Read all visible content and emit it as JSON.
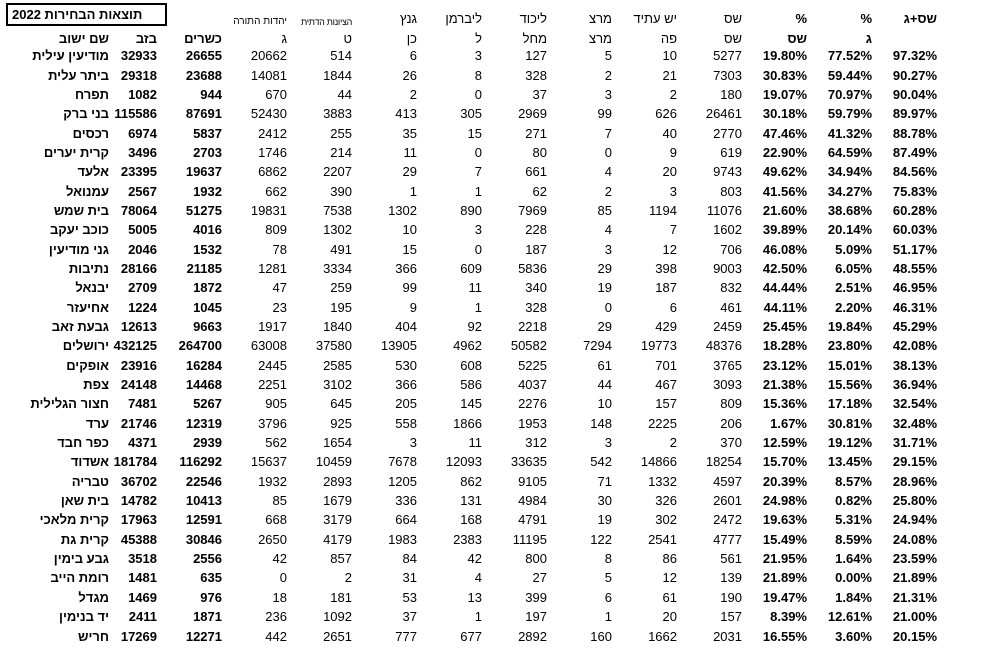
{
  "title": "תוצאות הבחירות 2022",
  "columns": [
    {
      "key": "city",
      "h1": "",
      "h2": "שם ישוב"
    },
    {
      "key": "bzb",
      "h1": "",
      "h2": "בזב"
    },
    {
      "key": "ksherim",
      "h1": "",
      "h2": "כשרים"
    },
    {
      "key": "yahadut-hatorah",
      "h1": "יהדות התורה",
      "h2": "ג"
    },
    {
      "key": "tzionut-datit",
      "h1": "הציונות הדתית",
      "h2": "ט"
    },
    {
      "key": "gantz",
      "h1": "גנץ",
      "h2": "כן"
    },
    {
      "key": "liberman",
      "h1": "ליברמן",
      "h2": "ל"
    },
    {
      "key": "likud",
      "h1": "ליכוד",
      "h2": "מחל"
    },
    {
      "key": "meretz",
      "h1": "מרצ",
      "h2": "מרצ"
    },
    {
      "key": "yesh-atid",
      "h1": "יש עתיד",
      "h2": "פה"
    },
    {
      "key": "shas",
      "h1": "שס",
      "h2": "שס"
    },
    {
      "key": "pct-shas",
      "h1": "%",
      "h2": "שס"
    },
    {
      "key": "pct-g",
      "h1": "%",
      "h2": "ג"
    },
    {
      "key": "pct-shas-g",
      "h1": "שס+ג",
      "h2": ""
    }
  ],
  "rows": [
    [
      "מודיעין עילית",
      "32933",
      "26655",
      "20662",
      "514",
      "6",
      "3",
      "127",
      "5",
      "10",
      "5277",
      "19.80%",
      "77.52%",
      "97.32%"
    ],
    [
      "ביתר עלית",
      "29318",
      "23688",
      "14081",
      "1844",
      "26",
      "8",
      "328",
      "2",
      "21",
      "7303",
      "30.83%",
      "59.44%",
      "90.27%"
    ],
    [
      "תפרח",
      "1082",
      "944",
      "670",
      "44",
      "2",
      "0",
      "37",
      "3",
      "2",
      "180",
      "19.07%",
      "70.97%",
      "90.04%"
    ],
    [
      "בני ברק",
      "115586",
      "87691",
      "52430",
      "3883",
      "413",
      "305",
      "2969",
      "99",
      "626",
      "26461",
      "30.18%",
      "59.79%",
      "89.97%"
    ],
    [
      "רכסים",
      "6974",
      "5837",
      "2412",
      "255",
      "35",
      "15",
      "271",
      "7",
      "40",
      "2770",
      "47.46%",
      "41.32%",
      "88.78%"
    ],
    [
      "קרית יערים",
      "3496",
      "2703",
      "1746",
      "214",
      "11",
      "0",
      "80",
      "0",
      "9",
      "619",
      "22.90%",
      "64.59%",
      "87.49%"
    ],
    [
      "אלעד",
      "23395",
      "19637",
      "6862",
      "2207",
      "29",
      "7",
      "661",
      "4",
      "20",
      "9743",
      "49.62%",
      "34.94%",
      "84.56%"
    ],
    [
      "עמנואל",
      "2567",
      "1932",
      "662",
      "390",
      "1",
      "1",
      "62",
      "2",
      "3",
      "803",
      "41.56%",
      "34.27%",
      "75.83%"
    ],
    [
      "בית שמש",
      "78064",
      "51275",
      "19831",
      "7538",
      "1302",
      "890",
      "7969",
      "85",
      "1194",
      "11076",
      "21.60%",
      "38.68%",
      "60.28%"
    ],
    [
      "כוכב יעקב",
      "5005",
      "4016",
      "809",
      "1302",
      "10",
      "3",
      "228",
      "4",
      "7",
      "1602",
      "39.89%",
      "20.14%",
      "60.03%"
    ],
    [
      "גני מודיעין",
      "2046",
      "1532",
      "78",
      "491",
      "15",
      "0",
      "187",
      "3",
      "12",
      "706",
      "46.08%",
      "5.09%",
      "51.17%"
    ],
    [
      "נתיבות",
      "28166",
      "21185",
      "1281",
      "3334",
      "366",
      "609",
      "5836",
      "29",
      "398",
      "9003",
      "42.50%",
      "6.05%",
      "48.55%"
    ],
    [
      "יבנאל",
      "2709",
      "1872",
      "47",
      "259",
      "99",
      "11",
      "340",
      "19",
      "187",
      "832",
      "44.44%",
      "2.51%",
      "46.95%"
    ],
    [
      "אחיעזר",
      "1224",
      "1045",
      "23",
      "195",
      "9",
      "1",
      "328",
      "0",
      "6",
      "461",
      "44.11%",
      "2.20%",
      "46.31%"
    ],
    [
      "גבעת זאב",
      "12613",
      "9663",
      "1917",
      "1840",
      "404",
      "92",
      "2218",
      "29",
      "429",
      "2459",
      "25.45%",
      "19.84%",
      "45.29%"
    ],
    [
      "ירושלים",
      "432125",
      "264700",
      "63008",
      "37580",
      "13905",
      "4962",
      "50582",
      "7294",
      "19773",
      "48376",
      "18.28%",
      "23.80%",
      "42.08%"
    ],
    [
      "אופקים",
      "23916",
      "16284",
      "2445",
      "2585",
      "530",
      "608",
      "5225",
      "61",
      "701",
      "3765",
      "23.12%",
      "15.01%",
      "38.13%"
    ],
    [
      "צפת",
      "24148",
      "14468",
      "2251",
      "3102",
      "366",
      "586",
      "4037",
      "44",
      "467",
      "3093",
      "21.38%",
      "15.56%",
      "36.94%"
    ],
    [
      "חצור הגלילית",
      "7481",
      "5267",
      "905",
      "645",
      "205",
      "145",
      "2276",
      "10",
      "157",
      "809",
      "15.36%",
      "17.18%",
      "32.54%"
    ],
    [
      "ערד",
      "21746",
      "12319",
      "3796",
      "925",
      "558",
      "1866",
      "1953",
      "148",
      "2225",
      "206",
      "1.67%",
      "30.81%",
      "32.48%"
    ],
    [
      "כפר חבד",
      "4371",
      "2939",
      "562",
      "1654",
      "3",
      "11",
      "312",
      "3",
      "2",
      "370",
      "12.59%",
      "19.12%",
      "31.71%"
    ],
    [
      "אשדוד",
      "181784",
      "116292",
      "15637",
      "10459",
      "7678",
      "12093",
      "33635",
      "542",
      "14866",
      "18254",
      "15.70%",
      "13.45%",
      "29.15%"
    ],
    [
      "טבריה",
      "36702",
      "22546",
      "1932",
      "2893",
      "1205",
      "862",
      "9105",
      "71",
      "1332",
      "4597",
      "20.39%",
      "8.57%",
      "28.96%"
    ],
    [
      "בית שאן",
      "14782",
      "10413",
      "85",
      "1679",
      "336",
      "131",
      "4984",
      "30",
      "326",
      "2601",
      "24.98%",
      "0.82%",
      "25.80%"
    ],
    [
      "קרית מלאכי",
      "17963",
      "12591",
      "668",
      "3179",
      "664",
      "168",
      "4791",
      "19",
      "302",
      "2472",
      "19.63%",
      "5.31%",
      "24.94%"
    ],
    [
      "קרית גת",
      "45388",
      "30846",
      "2650",
      "4179",
      "1983",
      "2383",
      "11195",
      "122",
      "2541",
      "4777",
      "15.49%",
      "8.59%",
      "24.08%"
    ],
    [
      "גבע בימין",
      "3518",
      "2556",
      "42",
      "857",
      "84",
      "42",
      "800",
      "8",
      "86",
      "561",
      "21.95%",
      "1.64%",
      "23.59%"
    ],
    [
      "רומת הייב",
      "1481",
      "635",
      "0",
      "2",
      "31",
      "4",
      "27",
      "5",
      "12",
      "139",
      "21.89%",
      "0.00%",
      "21.89%"
    ],
    [
      "מגדל",
      "1469",
      "976",
      "18",
      "181",
      "53",
      "13",
      "399",
      "6",
      "61",
      "190",
      "19.47%",
      "1.84%",
      "21.31%"
    ],
    [
      "יד בנימין",
      "2411",
      "1871",
      "236",
      "1092",
      "37",
      "1",
      "197",
      "1",
      "20",
      "157",
      "8.39%",
      "12.61%",
      "21.00%"
    ],
    [
      "חריש",
      "17269",
      "12271",
      "442",
      "2651",
      "777",
      "677",
      "2892",
      "160",
      "1662",
      "2031",
      "16.55%",
      "3.60%",
      "20.15%"
    ]
  ]
}
